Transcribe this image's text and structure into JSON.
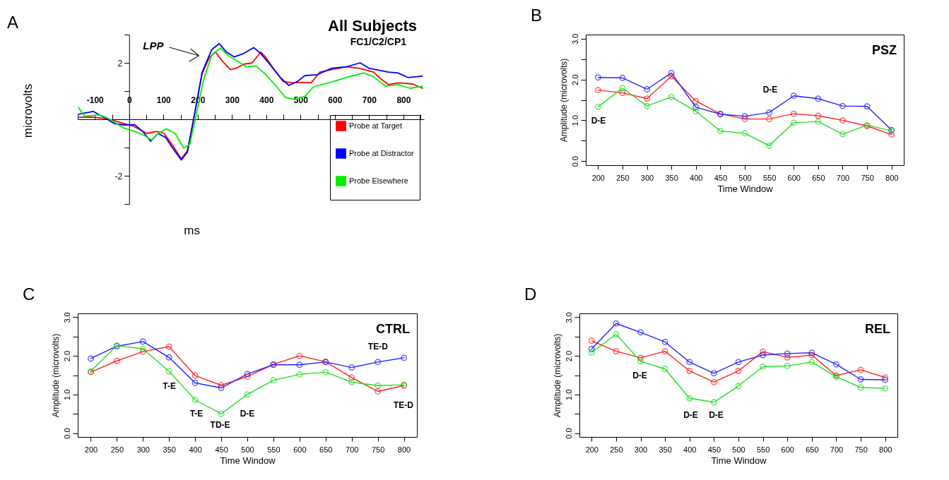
{
  "chart_data": [
    {
      "type": "line",
      "title": "All Subjects",
      "subtitle": "FC1/C2/CP1",
      "xlabel": "ms",
      "ylabel": "microvolts",
      "annotations": [
        "A",
        "LPP"
      ],
      "xlim": [
        -150,
        860
      ],
      "ylim": [
        -3,
        3
      ],
      "xticks": [
        {
          "value": -150,
          "label": null
        },
        -100,
        {
          "value": -50,
          "label": null
        },
        0,
        {
          "value": 50,
          "label": null
        },
        100,
        {
          "value": 150,
          "label": null
        },
        200,
        {
          "value": 250,
          "label": null
        },
        300,
        {
          "value": 350,
          "label": null
        },
        400,
        {
          "value": 450,
          "label": null
        },
        500,
        {
          "value": 550,
          "label": null
        },
        600,
        {
          "value": 650,
          "label": null
        },
        700,
        {
          "value": 750,
          "label": null
        },
        800,
        {
          "value": 850,
          "label": null
        }
      ],
      "yticks": [
        {
          "value": -3,
          "label": null
        },
        -2,
        {
          "value": -1,
          "label": null
        },
        {
          "value": 1,
          "label": null
        },
        2,
        {
          "value": 3,
          "label": null
        }
      ],
      "grid": false,
      "legend": "bottom right",
      "marker": "none",
      "line_style": "solid",
      "series": [
        {
          "name": "Probe at Target",
          "color": "#ff0000",
          "x": [
            -148,
            -109,
            -66,
            -23,
            13,
            52,
            81,
            102,
            127,
            152,
            170,
            191,
            213,
            234,
            252,
            270,
            295,
            313,
            334,
            359,
            384,
            399,
            420,
            449,
            477,
            506,
            531,
            556,
            591,
            634,
            670,
            713,
            734,
            756,
            784,
            827,
            856
          ],
          "values": [
            0.07,
            0.08,
            0.02,
            -0.12,
            -0.25,
            -0.5,
            -0.43,
            -0.5,
            -0.92,
            -1.4,
            -1.11,
            0.2,
            1.62,
            2.19,
            2.38,
            2.09,
            1.76,
            1.81,
            1.95,
            2.0,
            2.38,
            2.19,
            1.81,
            1.34,
            1.29,
            1.31,
            1.29,
            1.67,
            1.76,
            1.86,
            1.81,
            1.67,
            1.43,
            1.23,
            1.29,
            1.25,
            1.1
          ]
        },
        {
          "name": "Probe at Distractor",
          "color": "#0000ff",
          "x": [
            -148,
            -105,
            -66,
            -44,
            -16,
            16,
            41,
            63,
            84,
            106,
            127,
            152,
            170,
            191,
            213,
            241,
            263,
            284,
            306,
            334,
            363,
            384,
            413,
            441,
            466,
            491,
            513,
            549,
            591,
            634,
            674,
            699,
            756,
            784,
            813,
            855
          ],
          "values": [
            0.18,
            0.28,
            0.02,
            -0.15,
            -0.2,
            -0.19,
            -0.45,
            -0.78,
            -0.5,
            -0.64,
            -1.02,
            -1.44,
            -1.16,
            0.2,
            1.67,
            2.47,
            2.68,
            2.38,
            2.21,
            2.33,
            2.54,
            2.33,
            1.91,
            1.48,
            1.2,
            1.34,
            1.55,
            1.58,
            1.81,
            1.86,
            2.0,
            1.81,
            1.67,
            1.64,
            1.48,
            1.53
          ]
        },
        {
          "name": "Probe Elsewhere",
          "color": "#00ee00",
          "x": [
            -148,
            -130,
            -87,
            -59,
            -16,
            16,
            41,
            66,
            84,
            109,
            134,
            159,
            177,
            195,
            216,
            241,
            266,
            291,
            313,
            341,
            370,
            399,
            427,
            456,
            484,
            513,
            538,
            591,
            641,
            684,
            713,
            749,
            784,
            820,
            855
          ],
          "values": [
            0.42,
            0.11,
            0.16,
            0.02,
            -0.31,
            -0.43,
            -0.55,
            -0.74,
            -0.5,
            -0.34,
            -0.5,
            -1.02,
            -0.88,
            0.11,
            1.34,
            2.28,
            2.52,
            2.24,
            2.08,
            1.86,
            1.89,
            1.58,
            1.2,
            0.77,
            0.7,
            0.82,
            1.15,
            1.32,
            1.51,
            1.64,
            1.51,
            1.17,
            1.23,
            1.1,
            1.17
          ]
        }
      ]
    },
    {
      "type": "line",
      "title": "PSZ",
      "xlabel": "Time Window",
      "ylabel": "Amplitude (microvolts)",
      "annotations": [
        "B",
        "D-E",
        "D-E"
      ],
      "categories": [
        "200",
        "250",
        "300",
        "350",
        "400",
        "450",
        "500",
        "550",
        "600",
        "650",
        "700",
        "750",
        "800"
      ],
      "ylim": [
        -0.1,
        3.1
      ],
      "yticks": [
        {
          "value": 0,
          "label": "0.0"
        },
        {
          "value": 0.5,
          "label": null
        },
        {
          "value": 1,
          "label": "1.0"
        },
        {
          "value": 1.5,
          "label": null
        },
        {
          "value": 2,
          "label": "2.0"
        },
        {
          "value": 2.5,
          "label": null
        },
        {
          "value": 3,
          "label": "3.0"
        }
      ],
      "grid": false,
      "marker": "circle",
      "line_style": "solid",
      "series": [
        {
          "color": "#ff2222",
          "values": [
            1.74,
            1.67,
            1.53,
            2.08,
            1.47,
            1.16,
            1.03,
            1.03,
            1.16,
            1.11,
            1.0,
            0.86,
            0.65
          ]
        },
        {
          "color": "#2222ff",
          "values": [
            2.05,
            2.04,
            1.76,
            2.16,
            1.32,
            1.15,
            1.1,
            1.19,
            1.6,
            1.53,
            1.35,
            1.34,
            0.76
          ]
        },
        {
          "color": "#22dd22",
          "values": [
            1.33,
            1.79,
            1.35,
            1.57,
            1.22,
            0.74,
            0.68,
            0.38,
            0.94,
            0.97,
            0.66,
            0.88,
            0.74
          ]
        }
      ]
    },
    {
      "type": "line",
      "title": "CTRL",
      "xlabel": "Time Window",
      "ylabel": "Amplitude (microvolts)",
      "annotations": [
        "C",
        "T-E",
        "T-E",
        "TD-E",
        "D-E",
        "TE-D",
        "TE-D"
      ],
      "categories": [
        "200",
        "250",
        "300",
        "350",
        "400",
        "450",
        "500",
        "550",
        "600",
        "650",
        "700",
        "750",
        "800"
      ],
      "ylim": [
        -0.1,
        3.1
      ],
      "yticks": [
        {
          "value": 0,
          "label": "0.0"
        },
        {
          "value": 0.5,
          "label": null
        },
        {
          "value": 1,
          "label": "1.0"
        },
        {
          "value": 1.5,
          "label": null
        },
        {
          "value": 2,
          "label": "2.0"
        },
        {
          "value": 2.5,
          "label": null
        },
        {
          "value": 3,
          "label": "3.0"
        }
      ],
      "grid": false,
      "marker": "circle",
      "line_style": "solid",
      "series": [
        {
          "color": "#ff2222",
          "values": [
            1.58,
            1.87,
            2.11,
            2.24,
            1.49,
            1.24,
            1.46,
            1.78,
            2.0,
            1.85,
            1.44,
            1.08,
            1.23
          ]
        },
        {
          "color": "#2222ff",
          "values": [
            1.93,
            2.25,
            2.37,
            1.96,
            1.3,
            1.17,
            1.53,
            1.77,
            1.77,
            1.84,
            1.7,
            1.84,
            1.95
          ]
        },
        {
          "color": "#22dd22",
          "values": [
            1.6,
            2.27,
            2.18,
            1.6,
            0.86,
            0.5,
            1.0,
            1.37,
            1.52,
            1.58,
            1.32,
            1.23,
            1.25
          ]
        }
      ]
    },
    {
      "type": "line",
      "title": "REL",
      "xlabel": "Time Window",
      "ylabel": "Amplitude (microvolts)",
      "annotations": [
        "D",
        "D-E",
        "D-E",
        "D-E"
      ],
      "categories": [
        "200",
        "250",
        "300",
        "350",
        "400",
        "450",
        "500",
        "550",
        "600",
        "650",
        "700",
        "750",
        "800"
      ],
      "ylim": [
        -0.1,
        3.1
      ],
      "yticks": [
        {
          "value": 0,
          "label": "0.0"
        },
        {
          "value": 0.5,
          "label": null
        },
        {
          "value": 1,
          "label": "1.0"
        },
        {
          "value": 1.5,
          "label": null
        },
        {
          "value": 2,
          "label": "2.0"
        },
        {
          "value": 2.5,
          "label": null
        },
        {
          "value": 3,
          "label": "3.0"
        }
      ],
      "grid": false,
      "marker": "circle",
      "line_style": "solid",
      "series": [
        {
          "color": "#ff2222",
          "values": [
            2.39,
            2.12,
            1.95,
            2.12,
            1.61,
            1.32,
            1.61,
            2.11,
            1.96,
            2.02,
            1.49,
            1.64,
            1.44
          ]
        },
        {
          "color": "#2222ff",
          "values": [
            2.18,
            2.84,
            2.61,
            2.36,
            1.84,
            1.55,
            1.84,
            2.02,
            2.06,
            2.08,
            1.78,
            1.39,
            1.38
          ]
        },
        {
          "color": "#22dd22",
          "values": [
            2.09,
            2.56,
            1.86,
            1.66,
            0.9,
            0.8,
            1.22,
            1.72,
            1.74,
            1.84,
            1.46,
            1.18,
            1.16
          ]
        }
      ]
    }
  ]
}
